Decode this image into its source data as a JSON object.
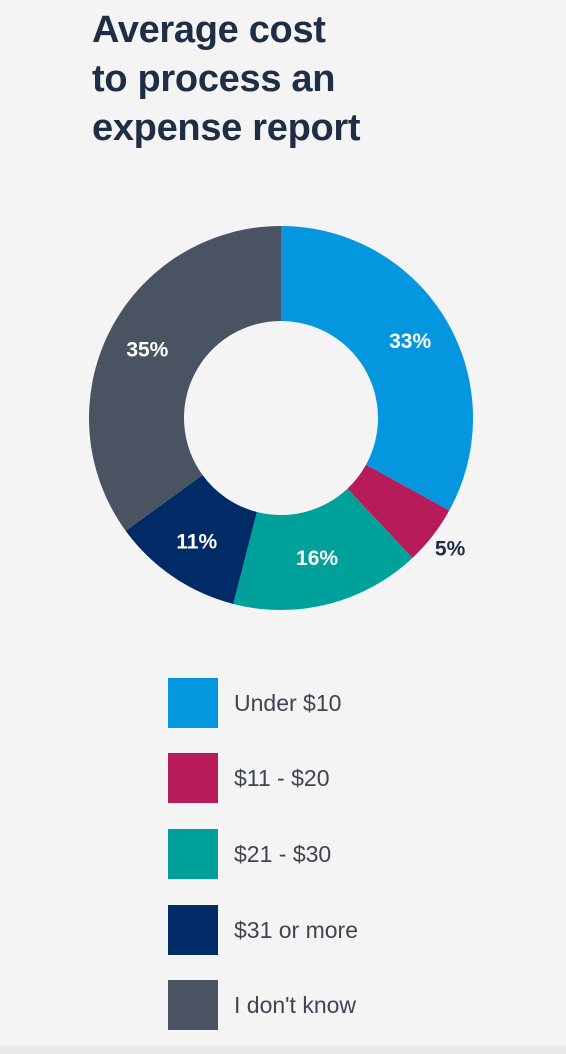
{
  "chart_data": {
    "type": "pie",
    "variant": "donut",
    "title_lines": [
      "Average cost",
      "to process an",
      "expense report"
    ],
    "slices": [
      {
        "label": "Under $10",
        "value": 33,
        "display": "33%",
        "color": "#0596e0",
        "label_color": "#ffffff"
      },
      {
        "label": "$11 - $20",
        "value": 5,
        "display": "5%",
        "color": "#b81b5a",
        "label_color": "#1f2d45"
      },
      {
        "label": "$21 - $30",
        "value": 16,
        "display": "16%",
        "color": "#00a19b",
        "label_color": "#ffffff"
      },
      {
        "label": "$31 or more",
        "value": 11,
        "display": "11%",
        "color": "#002b66",
        "label_color": "#ffffff"
      },
      {
        "label": "I don't know",
        "value": 35,
        "display": "35%",
        "color": "#4a5361",
        "label_color": "#ffffff"
      }
    ],
    "legend_placement": "bottom"
  }
}
